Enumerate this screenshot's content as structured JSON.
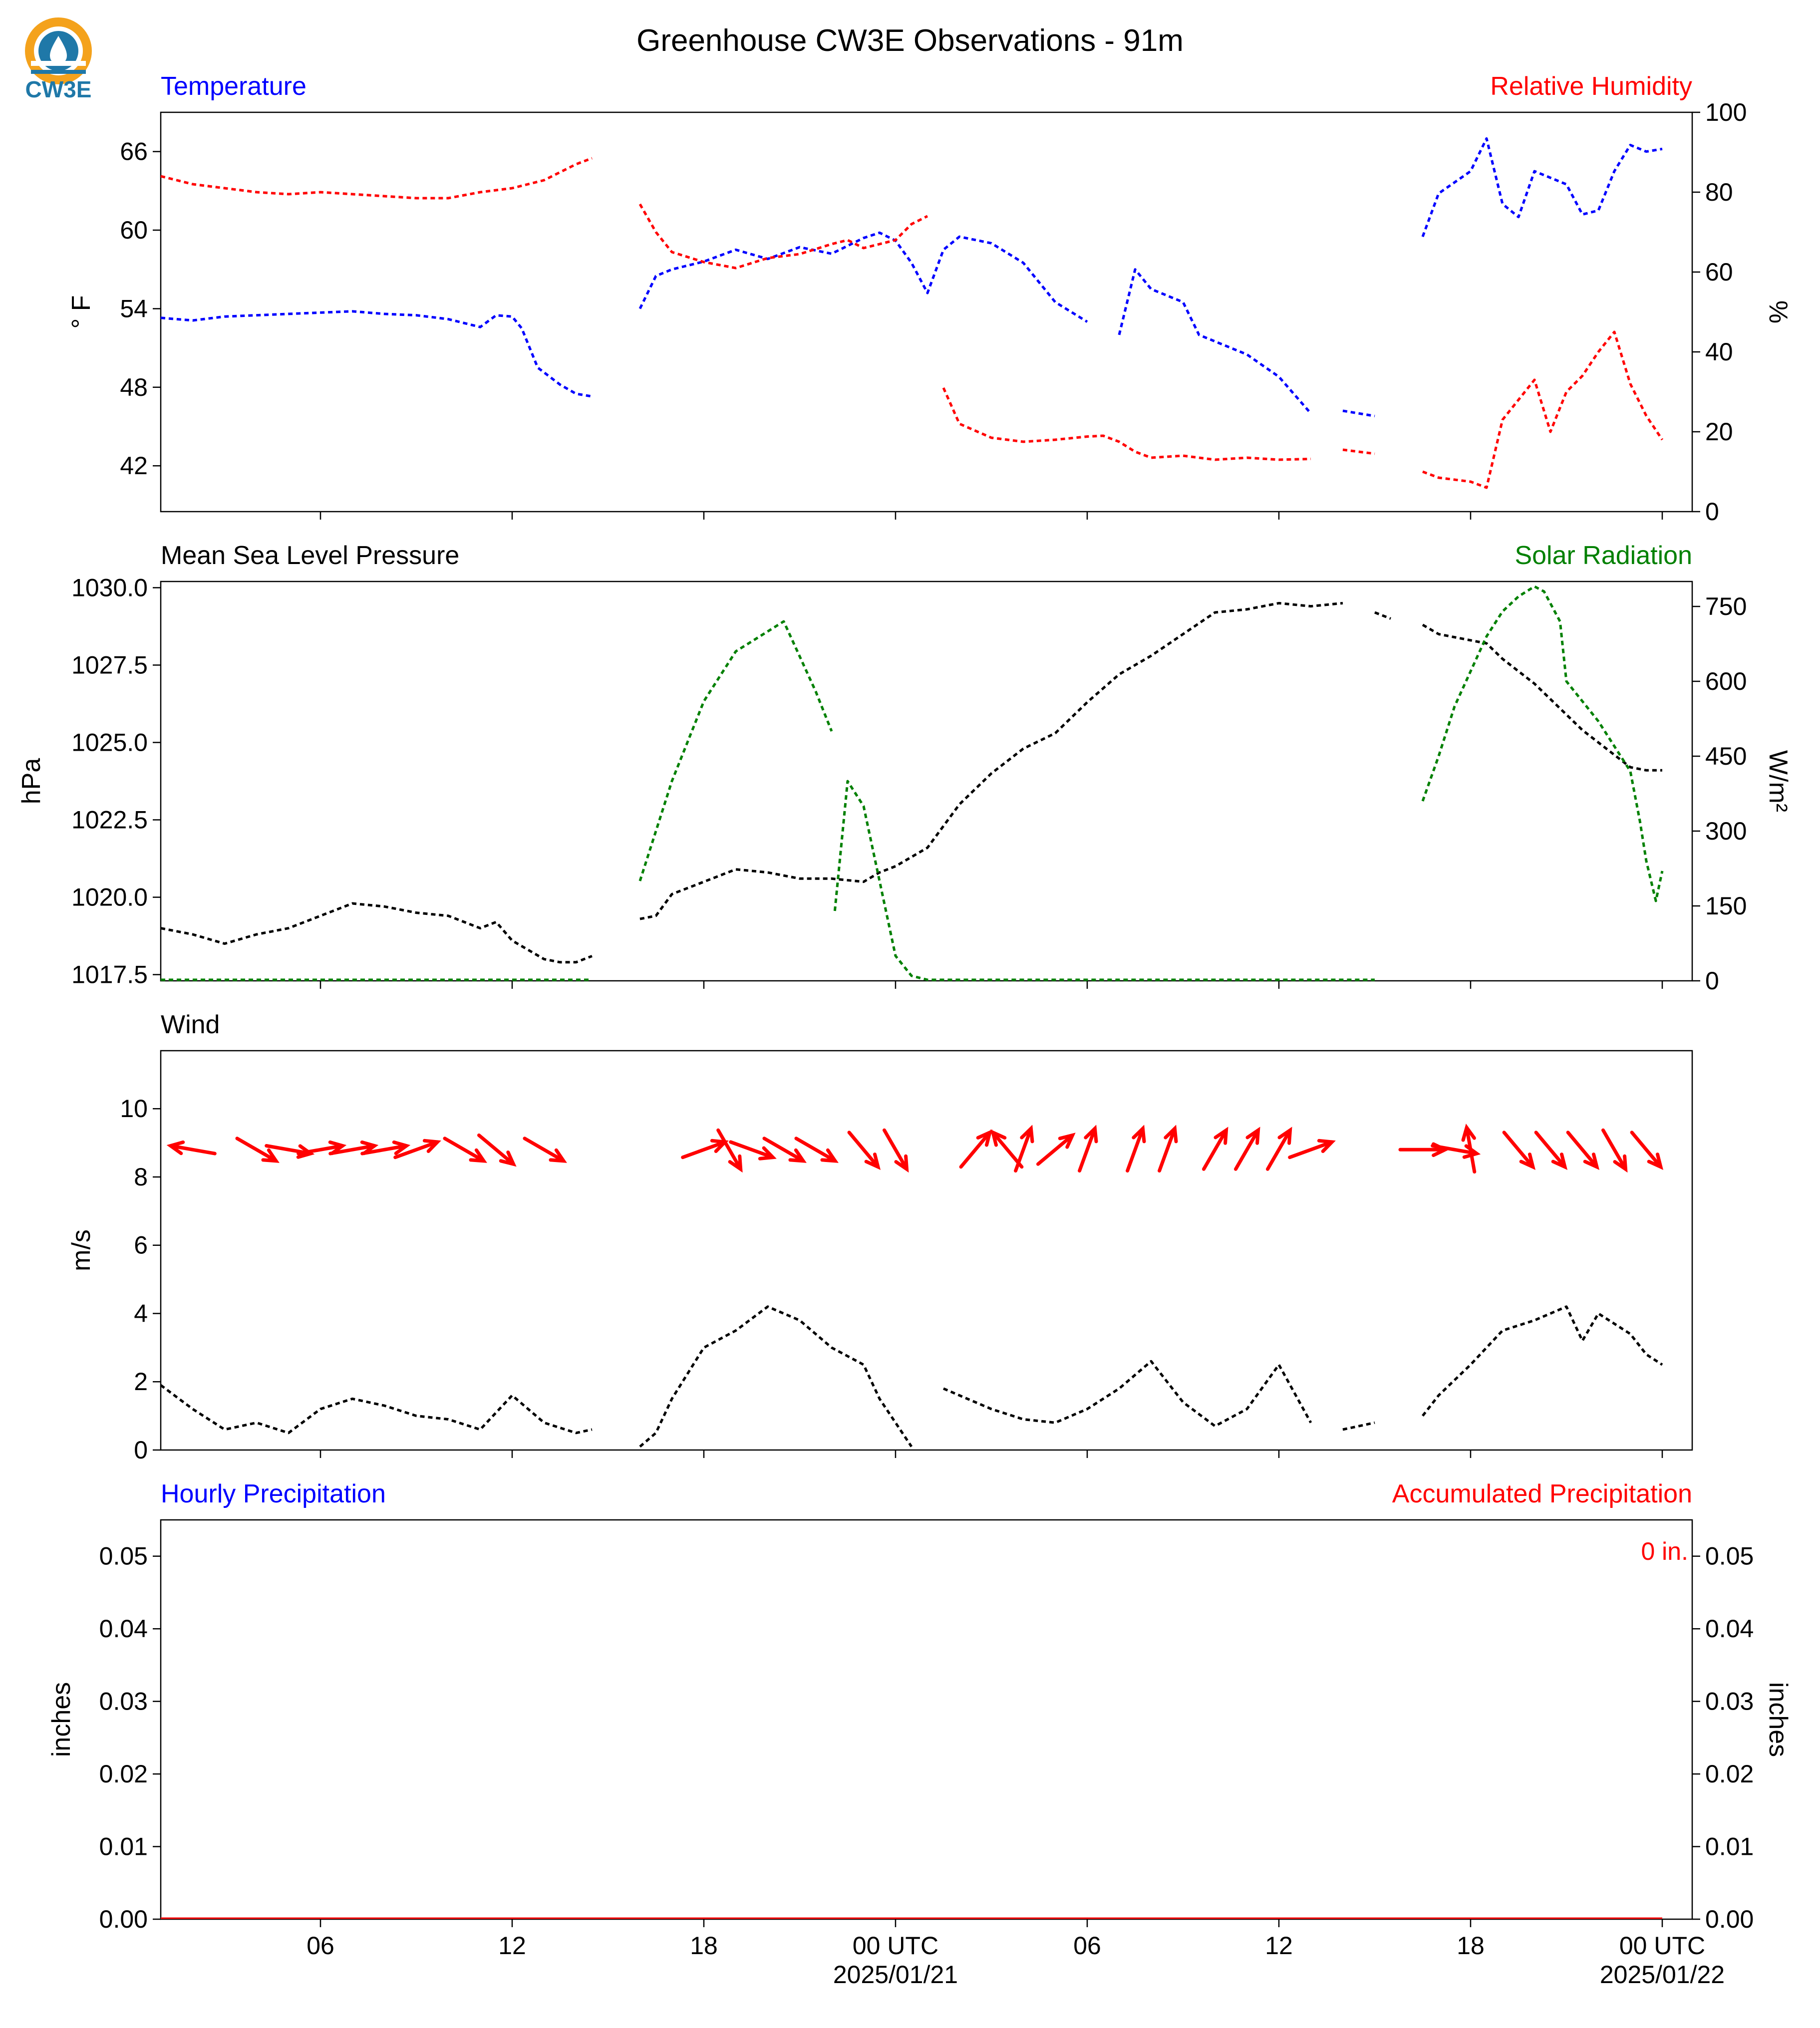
{
  "title": "Greenhouse CW3E Observations - 91m",
  "logo": {
    "text": "CW3E",
    "icon": "cw3e-logo-icon",
    "colors": {
      "orange": "#f4a21c",
      "blue": "#1f78a8"
    }
  },
  "x_axis": {
    "range_hours": [
      0,
      47
    ],
    "ticks": [
      {
        "h": 5,
        "label": "06"
      },
      {
        "h": 11,
        "label": "12"
      },
      {
        "h": 17,
        "label": "18"
      },
      {
        "h": 23,
        "label": "00 UTC",
        "sublabel": "2025/01/21"
      },
      {
        "h": 29,
        "label": "06"
      },
      {
        "h": 35,
        "label": "12"
      },
      {
        "h": 41,
        "label": "18"
      },
      {
        "h": 47,
        "label": "00 UTC",
        "sublabel": "2025/01/22"
      }
    ]
  },
  "chart_data": [
    {
      "type": "line",
      "panel": "temperature-humidity",
      "left_label": "Temperature",
      "right_label": "Relative Humidity",
      "ylabel_left": "° F",
      "ylabel_right": "%",
      "ylim_left": [
        38.5,
        69
      ],
      "ylim_right": [
        0,
        100
      ],
      "yticks_left": [
        42,
        48,
        54,
        60,
        66
      ],
      "yticks_right": [
        0,
        20,
        40,
        60,
        80,
        100
      ],
      "colors": {
        "left": "#0000ff",
        "right": "#ff0000"
      },
      "series": [
        {
          "name": "Temperature",
          "axis": "left",
          "color": "#0000ff",
          "x": [
            0,
            1,
            2,
            3,
            4,
            5,
            6,
            7,
            8,
            9,
            10,
            10.5,
            11,
            11.3,
            11.8,
            12.5,
            13,
            13.5,
            null,
            15,
            15.5,
            16,
            17,
            18,
            19,
            20,
            21,
            22,
            22.5,
            23,
            23.5,
            24,
            24.5,
            25,
            26,
            27,
            27.5,
            28,
            29,
            null,
            30,
            30.5,
            31,
            32,
            32.5,
            33,
            34,
            35,
            36,
            null,
            37,
            38,
            null,
            39.5,
            40,
            41,
            41.5,
            42,
            42.5,
            43,
            44,
            44.5,
            45,
            45.5,
            46,
            46.5,
            47
          ],
          "y": [
            53.3,
            53.1,
            53.4,
            53.5,
            53.6,
            53.7,
            53.8,
            53.6,
            53.5,
            53.2,
            52.6,
            53.5,
            53.4,
            52.5,
            49.5,
            48.2,
            47.5,
            47.3,
            null,
            54.0,
            56.5,
            57.0,
            57.6,
            58.5,
            57.8,
            58.7,
            58.2,
            59.4,
            59.8,
            59.2,
            57.5,
            55.2,
            58.5,
            59.5,
            59.0,
            57.5,
            56.0,
            54.5,
            53.0,
            null,
            52.0,
            57.0,
            55.5,
            54.5,
            52.0,
            51.5,
            50.5,
            48.8,
            46.0,
            null,
            46.2,
            45.8,
            null,
            59.5,
            62.8,
            64.5,
            67.0,
            62.0,
            61.0,
            64.5,
            63.5,
            61.2,
            61.5,
            64.5,
            66.5,
            66.0,
            66.2
          ]
        },
        {
          "name": "Relative Humidity",
          "axis": "right",
          "color": "#ff0000",
          "x": [
            0,
            1,
            2,
            3,
            4,
            5,
            6,
            7,
            8,
            9,
            10,
            11,
            11.5,
            12,
            12.5,
            13,
            13.5,
            null,
            15,
            15.5,
            16,
            17,
            18,
            19,
            20,
            21,
            21.5,
            22,
            22.5,
            23,
            23.5,
            24,
            null,
            24.5,
            25,
            26,
            27,
            28,
            29,
            29.5,
            30,
            30.5,
            31,
            32,
            33,
            34,
            35,
            36,
            null,
            37,
            38,
            null,
            39.5,
            40,
            41,
            41.5,
            42,
            42.5,
            43,
            43.5,
            44,
            44.5,
            45,
            45.5,
            46,
            46.5,
            47
          ],
          "y": [
            84,
            82,
            81,
            80,
            79.5,
            80,
            79.5,
            79,
            78.5,
            78.5,
            80,
            81,
            82,
            83,
            85,
            87,
            88.5,
            null,
            77,
            70,
            65,
            62.5,
            61,
            63.5,
            64.5,
            67,
            68,
            66,
            67,
            68,
            72,
            74,
            null,
            31,
            22,
            18.5,
            17.5,
            18,
            18.8,
            19,
            17.5,
            15,
            13.5,
            14,
            13,
            13.5,
            13,
            13.2,
            null,
            15.5,
            14.5,
            null,
            10,
            8.5,
            7.5,
            6.0,
            23,
            28,
            33,
            20,
            30,
            34,
            40,
            45,
            32,
            24,
            18
          ]
        }
      ]
    },
    {
      "type": "line",
      "panel": "pressure-solar",
      "left_label": "Mean Sea Level Pressure",
      "right_label": "Solar Radiation",
      "ylabel_left": "hPa",
      "ylabel_right": "W/m²",
      "ylim_left": [
        1017.3,
        1030.2
      ],
      "ylim_right": [
        0,
        800
      ],
      "yticks_left": [
        1017.5,
        1020.0,
        1022.5,
        1025.0,
        1027.5,
        1030.0
      ],
      "yticks_right": [
        0,
        150,
        300,
        450,
        600,
        750
      ],
      "colors": {
        "left": "#000000",
        "right": "#008000"
      },
      "series": [
        {
          "name": "Mean Sea Level Pressure",
          "axis": "left",
          "color": "#000000",
          "x": [
            0,
            1,
            2,
            3,
            4,
            5,
            6,
            7,
            8,
            9,
            10,
            10.5,
            11,
            12,
            12.5,
            13,
            13.5,
            null,
            15,
            15.5,
            16,
            17,
            18,
            19,
            20,
            21,
            22,
            22.5,
            23,
            24,
            25,
            26,
            27,
            28,
            29,
            30,
            31,
            32,
            33,
            34,
            35,
            36,
            37,
            null,
            38,
            38.5,
            null,
            39.5,
            40,
            41,
            41.5,
            42,
            43,
            44,
            44.5,
            45,
            45.5,
            46,
            46.5,
            47
          ],
          "y": [
            1019.0,
            1018.8,
            1018.5,
            1018.8,
            1019.0,
            1019.4,
            1019.8,
            1019.7,
            1019.5,
            1019.4,
            1019.0,
            1019.2,
            1018.6,
            1018.0,
            1017.9,
            1017.9,
            1018.1,
            null,
            1019.3,
            1019.4,
            1020.1,
            1020.5,
            1020.9,
            1020.8,
            1020.6,
            1020.6,
            1020.5,
            1020.8,
            1021.0,
            1021.6,
            1023.0,
            1024.0,
            1024.8,
            1025.3,
            1026.3,
            1027.2,
            1027.8,
            1028.5,
            1029.2,
            1029.3,
            1029.5,
            1029.4,
            1029.5,
            null,
            1029.2,
            1029.0,
            null,
            1028.8,
            1028.5,
            1028.3,
            1028.2,
            1027.7,
            1026.9,
            1025.9,
            1025.4,
            1025.0,
            1024.6,
            1024.2,
            1024.1,
            1024.1
          ]
        },
        {
          "name": "Solar Radiation",
          "axis": "right",
          "color": "#008000",
          "x": [
            0,
            13.5,
            null,
            15,
            15.5,
            16,
            16.5,
            17,
            18,
            19,
            19.5,
            20,
            20.5,
            21,
            null,
            21.1,
            21.5,
            22,
            22.5,
            23,
            23.5,
            24,
            31,
            35,
            38,
            null,
            39.5,
            40,
            40.5,
            41,
            41.5,
            42,
            42.5,
            43,
            43.3,
            43.8,
            44,
            44.5,
            45,
            45.5,
            46,
            46.3,
            46.5,
            46.8,
            47
          ],
          "y": [
            2,
            2,
            null,
            200,
            300,
            400,
            480,
            560,
            660,
            700,
            720,
            650,
            580,
            500,
            null,
            140,
            400,
            350,
            200,
            50,
            10,
            2,
            2,
            2,
            2,
            null,
            360,
            450,
            550,
            620,
            690,
            740,
            770,
            790,
            780,
            720,
            600,
            560,
            520,
            470,
            420,
            320,
            240,
            160,
            220
          ]
        }
      ]
    },
    {
      "type": "line",
      "panel": "wind",
      "left_label": "Wind",
      "ylabel_left": "m/s",
      "ylim_left": [
        0,
        11.7
      ],
      "yticks_left": [
        0,
        2,
        4,
        6,
        8,
        10
      ],
      "colors": {
        "speed": "#000000",
        "barbs": "#ff0000"
      },
      "series": [
        {
          "name": "Wind Speed",
          "color": "#000000",
          "x": [
            0,
            1,
            2,
            3,
            4,
            5,
            6,
            7,
            8,
            9,
            10,
            11,
            12,
            13,
            13.5,
            null,
            15,
            15.5,
            16,
            17,
            18,
            19,
            20,
            21,
            22,
            22.5,
            23,
            23.5,
            null,
            24.5,
            25,
            26,
            27,
            28,
            29,
            30,
            31,
            32,
            33,
            34,
            35,
            36,
            null,
            37,
            38,
            null,
            39.5,
            40,
            41,
            42,
            43,
            44,
            44.5,
            45,
            46,
            46.5,
            47
          ],
          "y": [
            1.9,
            1.2,
            0.6,
            0.8,
            0.5,
            1.2,
            1.5,
            1.3,
            1.0,
            0.9,
            0.6,
            1.6,
            0.8,
            0.5,
            0.6,
            null,
            0.1,
            0.5,
            1.5,
            3.0,
            3.5,
            4.2,
            3.8,
            3.0,
            2.5,
            1.5,
            0.8,
            0.1,
            null,
            1.8,
            1.6,
            1.2,
            0.9,
            0.8,
            1.2,
            1.8,
            2.6,
            1.4,
            0.7,
            1.2,
            2.5,
            0.8,
            null,
            0.6,
            0.8,
            null,
            1.0,
            1.6,
            2.5,
            3.5,
            3.8,
            4.2,
            3.2,
            4.0,
            3.4,
            2.8,
            2.5
          ]
        }
      ],
      "barbs": {
        "y": 8.8,
        "x": [
          1,
          3,
          4,
          5,
          6,
          7,
          8,
          9.5,
          10.5,
          12,
          17,
          17.8,
          18.5,
          19.5,
          20.5,
          22,
          23,
          25.5,
          26.5,
          27,
          28,
          29,
          30.5,
          31.5,
          33,
          34,
          35,
          36,
          39.5,
          40.5,
          41,
          42.5,
          43.5,
          44.5,
          45.5,
          46.5
        ],
        "dir_deg": [
          100,
          300,
          280,
          260,
          260,
          260,
          250,
          300,
          310,
          300,
          250,
          330,
          290,
          300,
          300,
          320,
          330,
          220,
          140,
          200,
          230,
          200,
          200,
          200,
          210,
          210,
          210,
          250,
          270,
          280,
          170,
          320,
          320,
          320,
          330,
          320
        ]
      }
    },
    {
      "type": "bar",
      "panel": "precipitation",
      "left_label": "Hourly Precipitation",
      "right_label": "Accumulated Precipitation",
      "ylabel_left": "inches",
      "ylabel_right": "inches",
      "ylim_left": [
        0,
        0.055
      ],
      "ylim_right": [
        0,
        0.055
      ],
      "yticks_left": [
        0.0,
        0.01,
        0.02,
        0.03,
        0.04,
        0.05
      ],
      "yticks_right": [
        0.0,
        0.01,
        0.02,
        0.03,
        0.04,
        0.05
      ],
      "colors": {
        "left": "#0000ff",
        "right": "#ff0000"
      },
      "annotation": "0 in.",
      "hourly_values": [],
      "accumulated": [
        0,
        0
      ]
    }
  ]
}
